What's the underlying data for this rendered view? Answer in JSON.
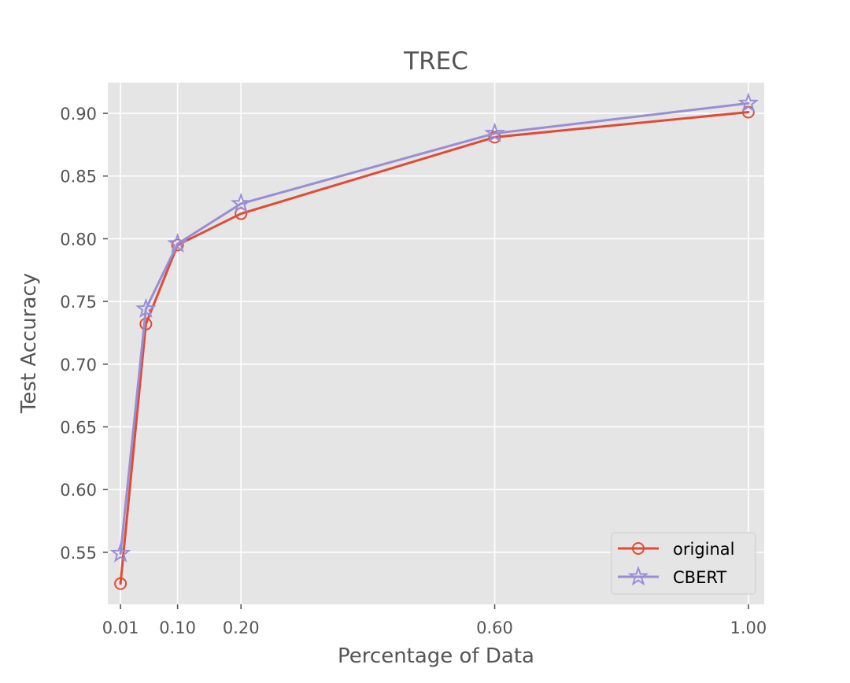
{
  "chart_data": {
    "type": "line",
    "title": "TREC",
    "xlabel": "Percentage of Data",
    "ylabel": "Test Accuracy",
    "xlim": [
      -0.01,
      1.025
    ],
    "ylim": [
      0.5085,
      0.9245
    ],
    "xticks": [
      0.01,
      0.1,
      0.2,
      0.6,
      1.0
    ],
    "xtick_labels": [
      "0.01",
      "0.10",
      "0.20",
      "0.60",
      "1.00"
    ],
    "yticks": [
      0.55,
      0.6,
      0.65,
      0.7,
      0.75,
      0.8,
      0.85,
      0.9
    ],
    "ytick_labels": [
      "0.55",
      "0.60",
      "0.65",
      "0.70",
      "0.75",
      "0.80",
      "0.85",
      "0.90"
    ],
    "grid": true,
    "legend_position": "lower-right",
    "x": [
      0.01,
      0.05,
      0.1,
      0.2,
      0.6,
      1.0
    ],
    "series": [
      {
        "name": "original",
        "values": [
          0.525,
          0.732,
          0.795,
          0.82,
          0.881,
          0.901
        ],
        "color": "#E24A33",
        "marker": "circle"
      },
      {
        "name": "CBERT",
        "values": [
          0.549,
          0.744,
          0.796,
          0.828,
          0.884,
          0.908
        ],
        "color": "#988ED5",
        "marker": "star"
      }
    ]
  }
}
